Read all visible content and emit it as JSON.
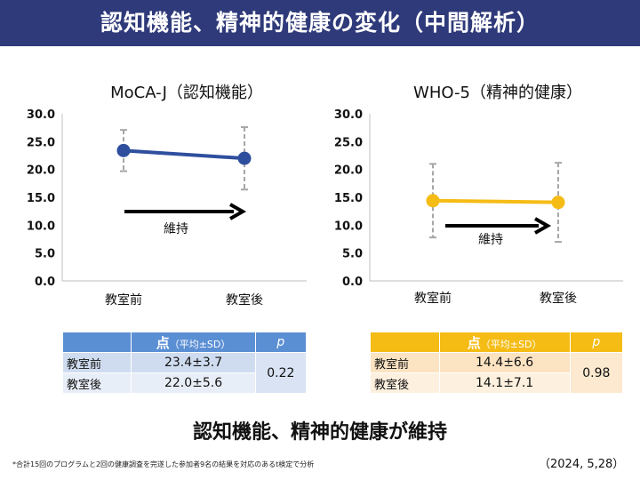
{
  "header": {
    "title": "認知機能、精神的健康の変化（中間解析）"
  },
  "chart_data": [
    {
      "type": "line",
      "title": "MoCA-J（認知機能）",
      "categories": [
        "教室前",
        "教室後"
      ],
      "values": [
        23.4,
        22.0
      ],
      "sd": [
        3.7,
        5.6
      ],
      "ylim": [
        0,
        30
      ],
      "yticks": [
        "0.0",
        "5.0",
        "10.0",
        "15.0",
        "20.0",
        "25.0",
        "30.0"
      ],
      "annotation": "維持",
      "color": "#2f4f9e",
      "grid": false
    },
    {
      "type": "line",
      "title": "WHO-5（精神的健康）",
      "categories": [
        "教室前",
        "教室後"
      ],
      "values": [
        14.4,
        14.1
      ],
      "sd": [
        6.6,
        7.1
      ],
      "ylim": [
        0,
        30
      ],
      "yticks": [
        "0.0",
        "5.0",
        "10.0",
        "15.0",
        "20.0",
        "25.0",
        "30.0"
      ],
      "annotation": "維持",
      "color": "#f5bc16",
      "grid": false
    }
  ],
  "table1": {
    "head_main": "点",
    "head_sub": "（平均±SD）",
    "head_p": "p",
    "rows": [
      {
        "label": "教室前",
        "value": "23.4±3.7"
      },
      {
        "label": "教室後",
        "value": "22.0±5.6"
      }
    ],
    "p": "0.22"
  },
  "table2": {
    "head_main": "点",
    "head_sub": "（平均±SD）",
    "head_p": "p",
    "rows": [
      {
        "label": "教室前",
        "value": "14.4±6.6"
      },
      {
        "label": "教室後",
        "value": "14.1±7.1"
      }
    ],
    "p": "0.98"
  },
  "conclusion": "認知機能、精神的健康が維持",
  "footnote": "*合計15回のプログラムと2回の健康調査を完遂した参加者9名の結果を対応のあるt検定で分析",
  "date": "（2024, 5,28）"
}
